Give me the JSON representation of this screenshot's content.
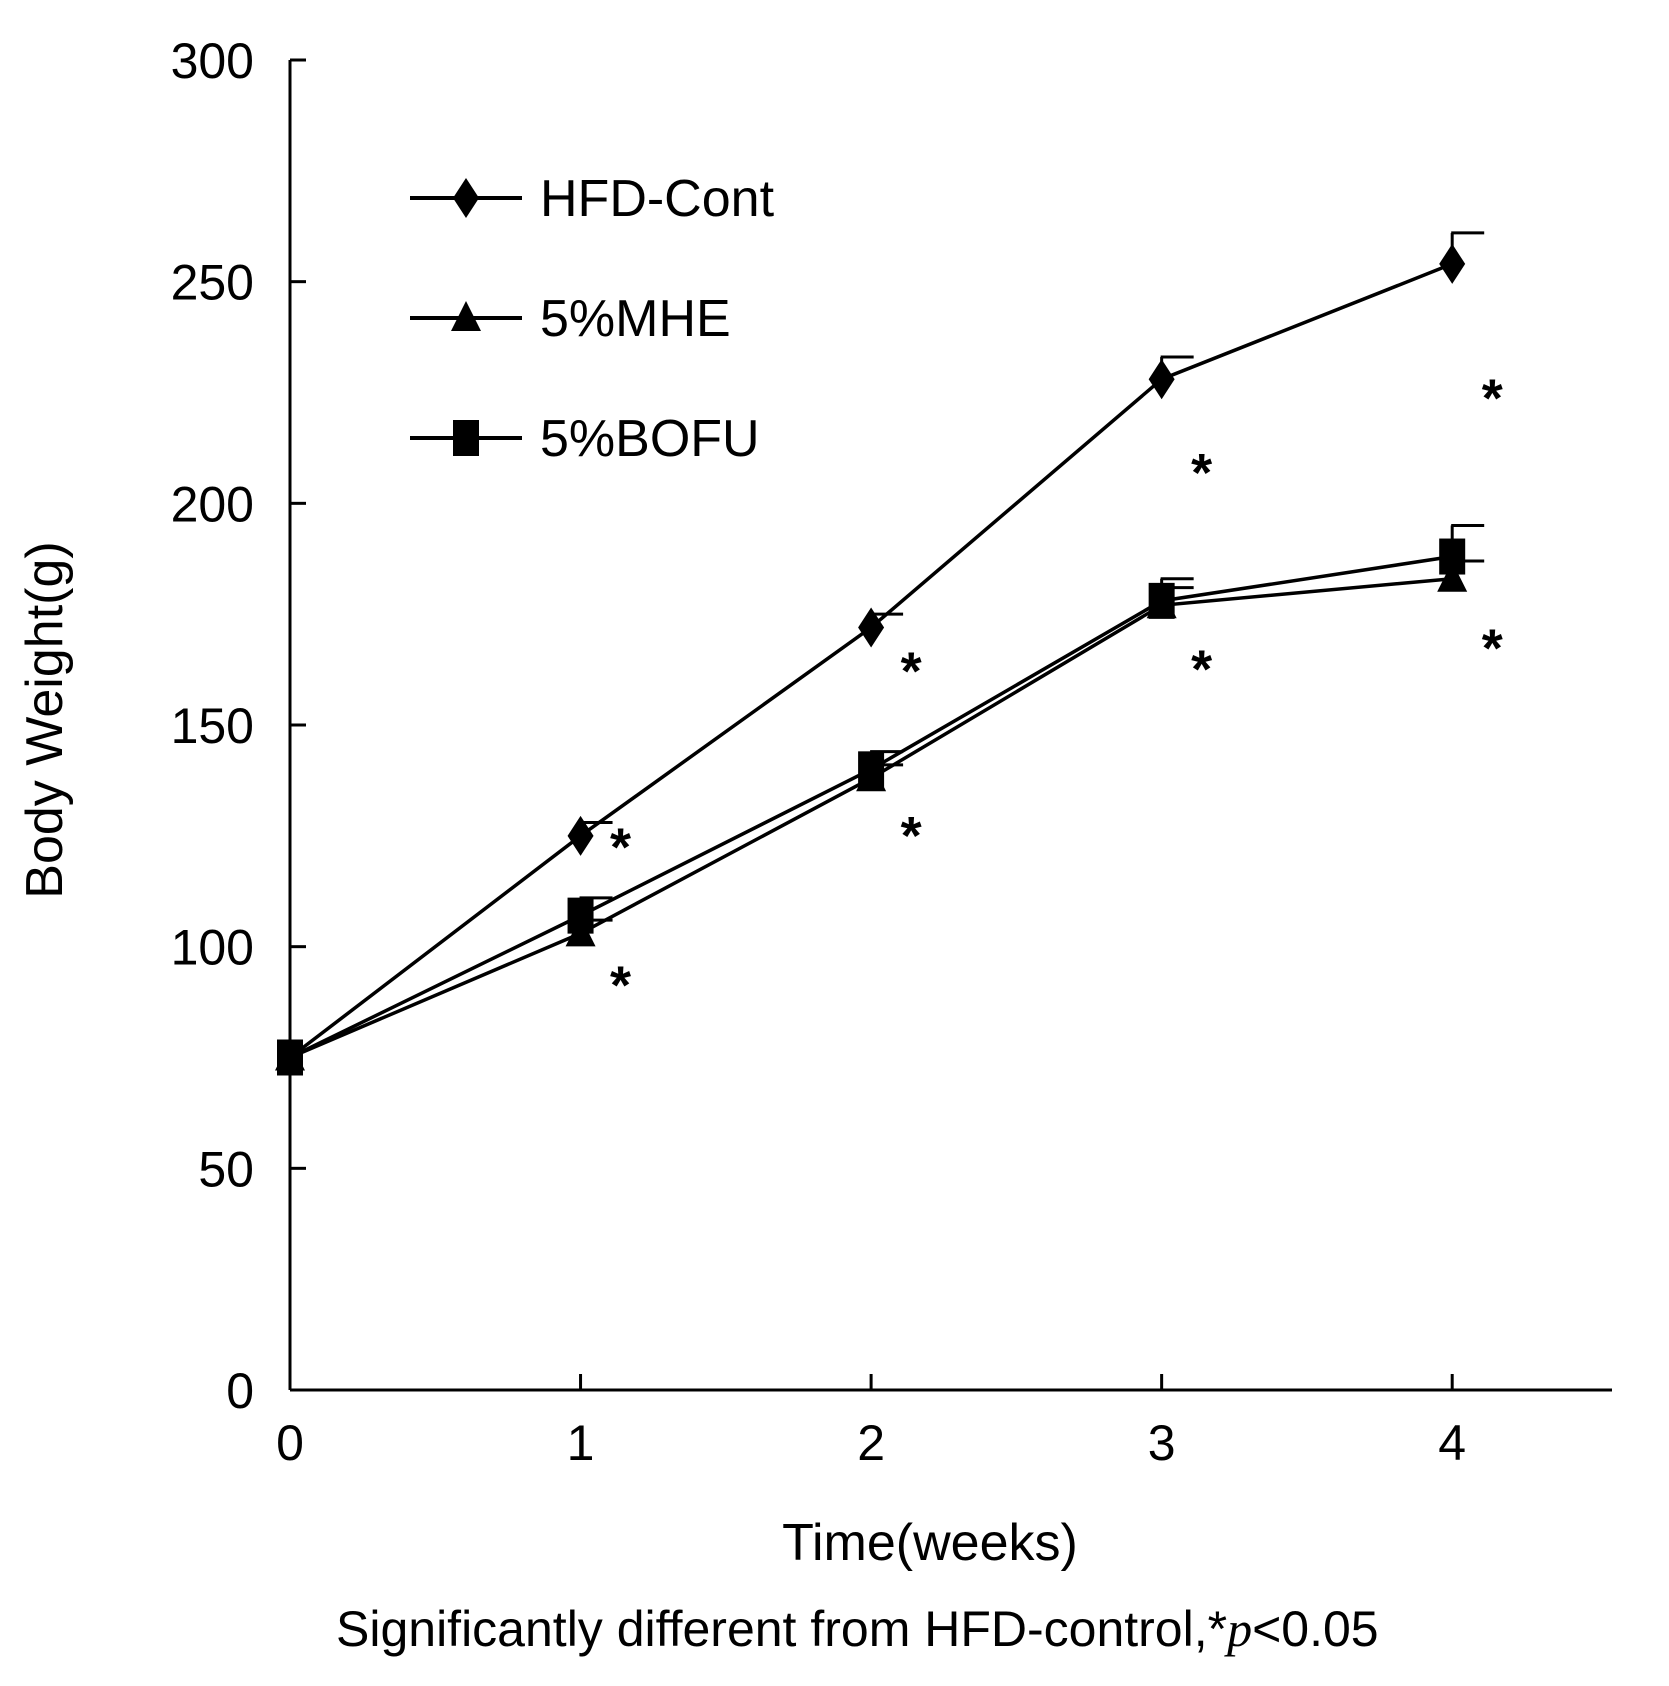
{
  "chart_data": {
    "type": "line",
    "title": "",
    "xlabel": "Time(weeks)",
    "ylabel": "Body Weight(g)",
    "x": [
      0,
      1,
      2,
      3,
      4
    ],
    "xticks": [
      "0",
      "1",
      "2",
      "3",
      "4"
    ],
    "yticks": [
      "0",
      "50",
      "100",
      "150",
      "200",
      "250",
      "300"
    ],
    "xlim": [
      0,
      4.55
    ],
    "ylim": [
      0,
      300
    ],
    "legend_position": "top-left",
    "series": [
      {
        "name": "HFD-Cont",
        "marker": "diamond",
        "values": [
          75,
          125,
          172,
          228,
          254
        ],
        "errors": [
          0,
          3,
          3,
          5,
          7
        ]
      },
      {
        "name": "5%MHE",
        "marker": "triangle",
        "values": [
          75,
          103,
          138,
          177,
          183
        ],
        "errors": [
          0,
          3,
          3,
          4,
          4
        ]
      },
      {
        "name": "5%BOFU",
        "marker": "square",
        "values": [
          75,
          107,
          140,
          178,
          188
        ],
        "errors": [
          0,
          4,
          4,
          5,
          7
        ]
      }
    ],
    "annotations": [
      {
        "text": "*",
        "series": "5%BOFU",
        "x": 1,
        "placement": "above-right"
      },
      {
        "text": "*",
        "series": "5%MHE",
        "x": 1,
        "placement": "below-right"
      },
      {
        "text": "*",
        "series": "5%BOFU",
        "x": 2,
        "placement": "above-right"
      },
      {
        "text": "*",
        "series": "5%MHE",
        "x": 2,
        "placement": "below-right"
      },
      {
        "text": "*",
        "series": "5%BOFU",
        "x": 3,
        "placement": "above-right"
      },
      {
        "text": "*",
        "series": "5%MHE",
        "x": 3,
        "placement": "below-right"
      },
      {
        "text": "*",
        "series": "5%BOFU",
        "x": 4,
        "placement": "above-right"
      },
      {
        "text": "*",
        "series": "5%MHE",
        "x": 4,
        "placement": "below-right"
      }
    ],
    "footnote": {
      "text": "Significantly different from HFD-control,",
      "star": "*",
      "p_symbol": "p",
      "threshold": "<0.05"
    }
  }
}
